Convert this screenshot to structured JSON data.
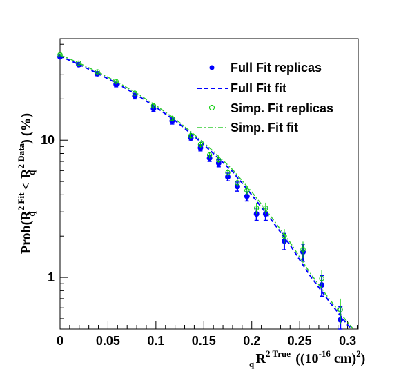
{
  "chart_data": {
    "type": "scatter",
    "title": "",
    "xlabel": {
      "main": "R",
      "sub": "q",
      "sup": "2 True",
      "units_prefix": "((10",
      "units_exp": "-16",
      "units_mid": " cm)",
      "units_exp2": "2",
      "units_suffix": ")"
    },
    "ylabel": {
      "prefix": "Prob(R",
      "sub1": "q",
      "sup1": "2 Fit",
      "mid": " < R",
      "sub2": "q",
      "sup2": "2 Data",
      "suffix": ") (%)"
    },
    "xlim": [
      0,
      0.3111
    ],
    "ylim": [
      0.42,
      55
    ],
    "yscale": "log",
    "x_ticks": [
      0,
      0.05,
      0.1,
      0.15,
      0.2,
      0.25,
      0.3
    ],
    "x_tick_labels": [
      "0",
      "0.05",
      "0.1",
      "0.15",
      "0.2",
      "0.25",
      "0.3"
    ],
    "y_ticks": [
      1,
      10
    ],
    "y_tick_labels": [
      "1",
      "10"
    ],
    "grid": false,
    "legend_position": "top-right",
    "series": [
      {
        "name": "Full Fit replicas",
        "kind": "points-with-errors",
        "color": "#0000ff",
        "x": [
          0.0,
          0.0195,
          0.039,
          0.0585,
          0.078,
          0.0975,
          0.117,
          0.1365,
          0.1465,
          0.156,
          0.1655,
          0.175,
          0.185,
          0.195,
          0.205,
          0.2145,
          0.234,
          0.2535,
          0.273,
          0.2925
        ],
        "y": [
          40.5,
          35.5,
          30.5,
          25.5,
          21.0,
          17.0,
          13.8,
          10.4,
          8.8,
          7.4,
          6.8,
          5.4,
          4.6,
          3.9,
          2.9,
          2.9,
          1.84,
          1.53,
          0.88,
          0.49
        ],
        "err_lo": [
          1.0,
          1.0,
          1.0,
          1.0,
          1.0,
          0.8,
          0.7,
          0.5,
          0.45,
          0.4,
          0.4,
          0.35,
          0.35,
          0.3,
          0.3,
          0.3,
          0.25,
          0.22,
          0.15,
          0.12
        ],
        "err_hi": [
          1.0,
          1.0,
          1.0,
          1.0,
          1.0,
          0.8,
          0.7,
          0.5,
          0.45,
          0.4,
          0.4,
          0.35,
          0.35,
          0.3,
          0.3,
          0.3,
          0.25,
          0.22,
          0.15,
          0.12
        ]
      },
      {
        "name": "Full Fit fit",
        "kind": "dashed-line",
        "color": "#0000ff",
        "x": [
          0.0,
          0.02,
          0.04,
          0.06,
          0.08,
          0.1,
          0.12,
          0.14,
          0.16,
          0.18,
          0.2,
          0.22,
          0.24,
          0.26,
          0.28,
          0.3,
          0.305
        ],
        "y": [
          41.0,
          35.6,
          30.5,
          25.8,
          21.4,
          17.4,
          13.9,
          10.7,
          8.0,
          5.9,
          4.0,
          2.65,
          1.72,
          1.05,
          0.68,
          0.45,
          0.42
        ]
      },
      {
        "name": "Simp. Fit replicas",
        "kind": "open-circles-with-errors",
        "color": "#00cc00",
        "x": [
          0.0,
          0.0195,
          0.039,
          0.0585,
          0.078,
          0.0975,
          0.117,
          0.1365,
          0.1465,
          0.156,
          0.1655,
          0.175,
          0.185,
          0.195,
          0.205,
          0.2145,
          0.234,
          0.2535,
          0.273,
          0.2925
        ],
        "y": [
          42.0,
          36.5,
          31.5,
          26.8,
          22.0,
          17.8,
          14.4,
          10.8,
          9.3,
          7.8,
          7.2,
          5.8,
          4.9,
          4.3,
          3.2,
          3.2,
          2.0,
          1.6,
          0.98,
          0.58
        ],
        "err_lo": [
          1.0,
          1.0,
          1.0,
          1.0,
          1.0,
          0.8,
          0.7,
          0.5,
          0.45,
          0.4,
          0.4,
          0.35,
          0.35,
          0.3,
          0.3,
          0.3,
          0.25,
          0.22,
          0.15,
          0.12
        ],
        "err_hi": [
          1.0,
          1.0,
          1.0,
          1.0,
          1.0,
          0.8,
          0.7,
          0.5,
          0.45,
          0.4,
          0.4,
          0.35,
          0.35,
          0.3,
          0.3,
          0.3,
          0.25,
          0.22,
          0.15,
          0.12
        ]
      },
      {
        "name": "Simp. Fit fit",
        "kind": "dashdot-line",
        "color": "#33cc33",
        "x": [
          0.0,
          0.02,
          0.04,
          0.06,
          0.08,
          0.1,
          0.12,
          0.14,
          0.16,
          0.18,
          0.2,
          0.22,
          0.24,
          0.26,
          0.28,
          0.3,
          0.306
        ],
        "y": [
          42.0,
          36.4,
          31.3,
          26.5,
          22.0,
          17.9,
          14.3,
          11.0,
          8.3,
          6.1,
          4.2,
          2.78,
          1.8,
          1.1,
          0.71,
          0.47,
          0.42
        ]
      }
    ]
  }
}
